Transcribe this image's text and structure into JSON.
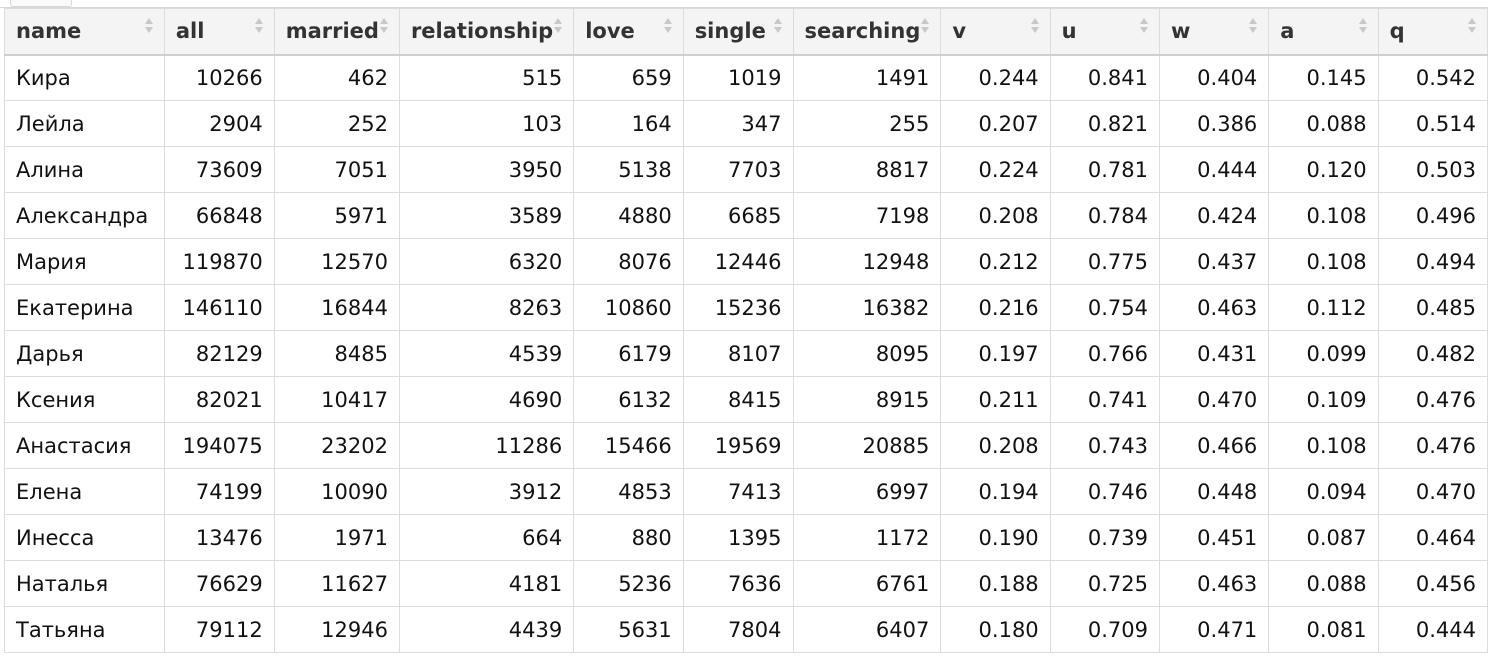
{
  "table": {
    "columns": [
      {
        "key": "name",
        "label": "name"
      },
      {
        "key": "all",
        "label": "all"
      },
      {
        "key": "married",
        "label": "married"
      },
      {
        "key": "relationship",
        "label": "relationship"
      },
      {
        "key": "love",
        "label": "love"
      },
      {
        "key": "single",
        "label": "single"
      },
      {
        "key": "searching",
        "label": "searching"
      },
      {
        "key": "v",
        "label": "v"
      },
      {
        "key": "u",
        "label": "u"
      },
      {
        "key": "w",
        "label": "w"
      },
      {
        "key": "a",
        "label": "a"
      },
      {
        "key": "q",
        "label": "q"
      }
    ],
    "sort_icon": "sort-arrows-icon",
    "rows": [
      [
        "Кира",
        "10266",
        "462",
        "515",
        "659",
        "1019",
        "1491",
        "0.244",
        "0.841",
        "0.404",
        "0.145",
        "0.542"
      ],
      [
        "Лейла",
        "2904",
        "252",
        "103",
        "164",
        "347",
        "255",
        "0.207",
        "0.821",
        "0.386",
        "0.088",
        "0.514"
      ],
      [
        "Алина",
        "73609",
        "7051",
        "3950",
        "5138",
        "7703",
        "8817",
        "0.224",
        "0.781",
        "0.444",
        "0.120",
        "0.503"
      ],
      [
        "Александра",
        "66848",
        "5971",
        "3589",
        "4880",
        "6685",
        "7198",
        "0.208",
        "0.784",
        "0.424",
        "0.108",
        "0.496"
      ],
      [
        "Мария",
        "119870",
        "12570",
        "6320",
        "8076",
        "12446",
        "12948",
        "0.212",
        "0.775",
        "0.437",
        "0.108",
        "0.494"
      ],
      [
        "Екатерина",
        "146110",
        "16844",
        "8263",
        "10860",
        "15236",
        "16382",
        "0.216",
        "0.754",
        "0.463",
        "0.112",
        "0.485"
      ],
      [
        "Дарья",
        "82129",
        "8485",
        "4539",
        "6179",
        "8107",
        "8095",
        "0.197",
        "0.766",
        "0.431",
        "0.099",
        "0.482"
      ],
      [
        "Ксения",
        "82021",
        "10417",
        "4690",
        "6132",
        "8415",
        "8915",
        "0.211",
        "0.741",
        "0.470",
        "0.109",
        "0.476"
      ],
      [
        "Анастасия",
        "194075",
        "23202",
        "11286",
        "15466",
        "19569",
        "20885",
        "0.208",
        "0.743",
        "0.466",
        "0.108",
        "0.476"
      ],
      [
        "Елена",
        "74199",
        "10090",
        "3912",
        "4853",
        "7413",
        "6997",
        "0.194",
        "0.746",
        "0.448",
        "0.094",
        "0.470"
      ],
      [
        "Инесса",
        "13476",
        "1971",
        "664",
        "880",
        "1395",
        "1172",
        "0.190",
        "0.739",
        "0.451",
        "0.087",
        "0.464"
      ],
      [
        "Наталья",
        "76629",
        "11627",
        "4181",
        "5236",
        "7636",
        "6761",
        "0.188",
        "0.725",
        "0.463",
        "0.088",
        "0.456"
      ],
      [
        "Татьяна",
        "79112",
        "12946",
        "4439",
        "5631",
        "7804",
        "6407",
        "0.180",
        "0.709",
        "0.471",
        "0.081",
        "0.444"
      ]
    ]
  },
  "colors": {
    "header_bg": "#f4f4f4",
    "grid": "#dcdcdc",
    "sort_arrow": "#c8c8c8",
    "text": "#111111"
  }
}
